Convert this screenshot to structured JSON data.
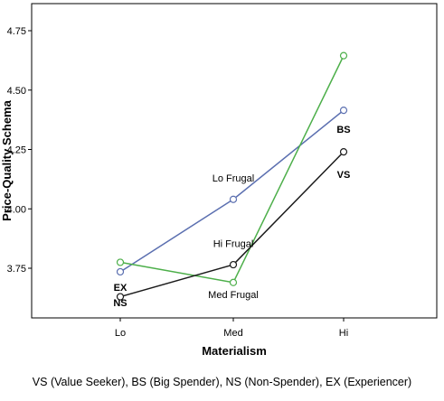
{
  "chart_data": {
    "type": "line",
    "title": "",
    "xlabel": "Materialism",
    "ylabel": "Price-Quality Schema",
    "categories": [
      "Lo",
      "Med",
      "Hi"
    ],
    "ylim": [
      3.6,
      4.8
    ],
    "yticks": [
      "3.75",
      "4.00",
      "4.25",
      "4.50",
      "4.75"
    ],
    "grid": false,
    "series": [
      {
        "name": "Lo Frugal",
        "color": "#5b6fb0",
        "values": [
          3.735,
          4.04,
          4.415
        ]
      },
      {
        "name": "Med Frugal",
        "color": "#4daf4a",
        "values": [
          3.775,
          3.69,
          4.645
        ]
      },
      {
        "name": "Hi Frugal",
        "color": "#1a1a1a",
        "values": [
          3.63,
          3.765,
          4.24
        ]
      }
    ],
    "annotations": [
      {
        "text": "Lo Frugal",
        "x": "Med",
        "y": 4.13,
        "bold": false
      },
      {
        "text": "Hi Frugal",
        "x": "Med",
        "y": 3.855,
        "bold": false
      },
      {
        "text": "Med Frugal",
        "x": "Med",
        "y": 3.64,
        "bold": false
      },
      {
        "text": "BS",
        "x": "Hi",
        "y": 4.335,
        "bold": true
      },
      {
        "text": "VS",
        "x": "Hi",
        "y": 4.145,
        "bold": true
      },
      {
        "text": "EX",
        "x": "Lo",
        "y": 3.67,
        "bold": true
      },
      {
        "text": "NS",
        "x": "Lo",
        "y": 3.605,
        "bold": true
      }
    ]
  },
  "footnote": "VS (Value Seeker), BS (Big Spender), NS (Non-Spender), EX (Experiencer)"
}
